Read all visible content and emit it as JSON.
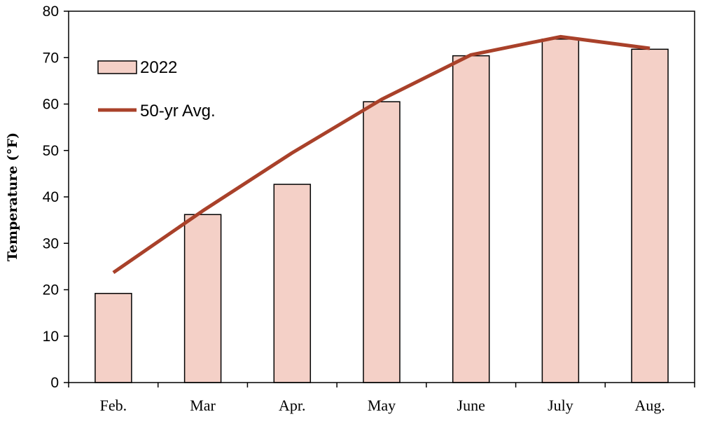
{
  "chart_data": {
    "type": "bar",
    "ylabel": "Temperature (°F)",
    "xlabel": "",
    "ylim": [
      0,
      80
    ],
    "yticks": [
      0,
      10,
      20,
      30,
      40,
      50,
      60,
      70,
      80
    ],
    "categories": [
      "Feb.",
      "Mar",
      "Apr.",
      "May",
      "June",
      "July",
      "Aug."
    ],
    "series": [
      {
        "name": "2022",
        "type": "bar",
        "values": [
          19.2,
          36.2,
          42.7,
          60.5,
          70.4,
          74.0,
          71.8
        ]
      },
      {
        "name": "50-yr Avg.",
        "type": "line",
        "values": [
          23.7,
          37.0,
          49.5,
          61.0,
          70.6,
          74.5,
          72.0
        ]
      }
    ],
    "legend_position": "top-left",
    "grid": false,
    "colors": {
      "bar_fill": "#f4d0c7",
      "bar_stroke": "#000000",
      "line": "#a9412a"
    }
  }
}
